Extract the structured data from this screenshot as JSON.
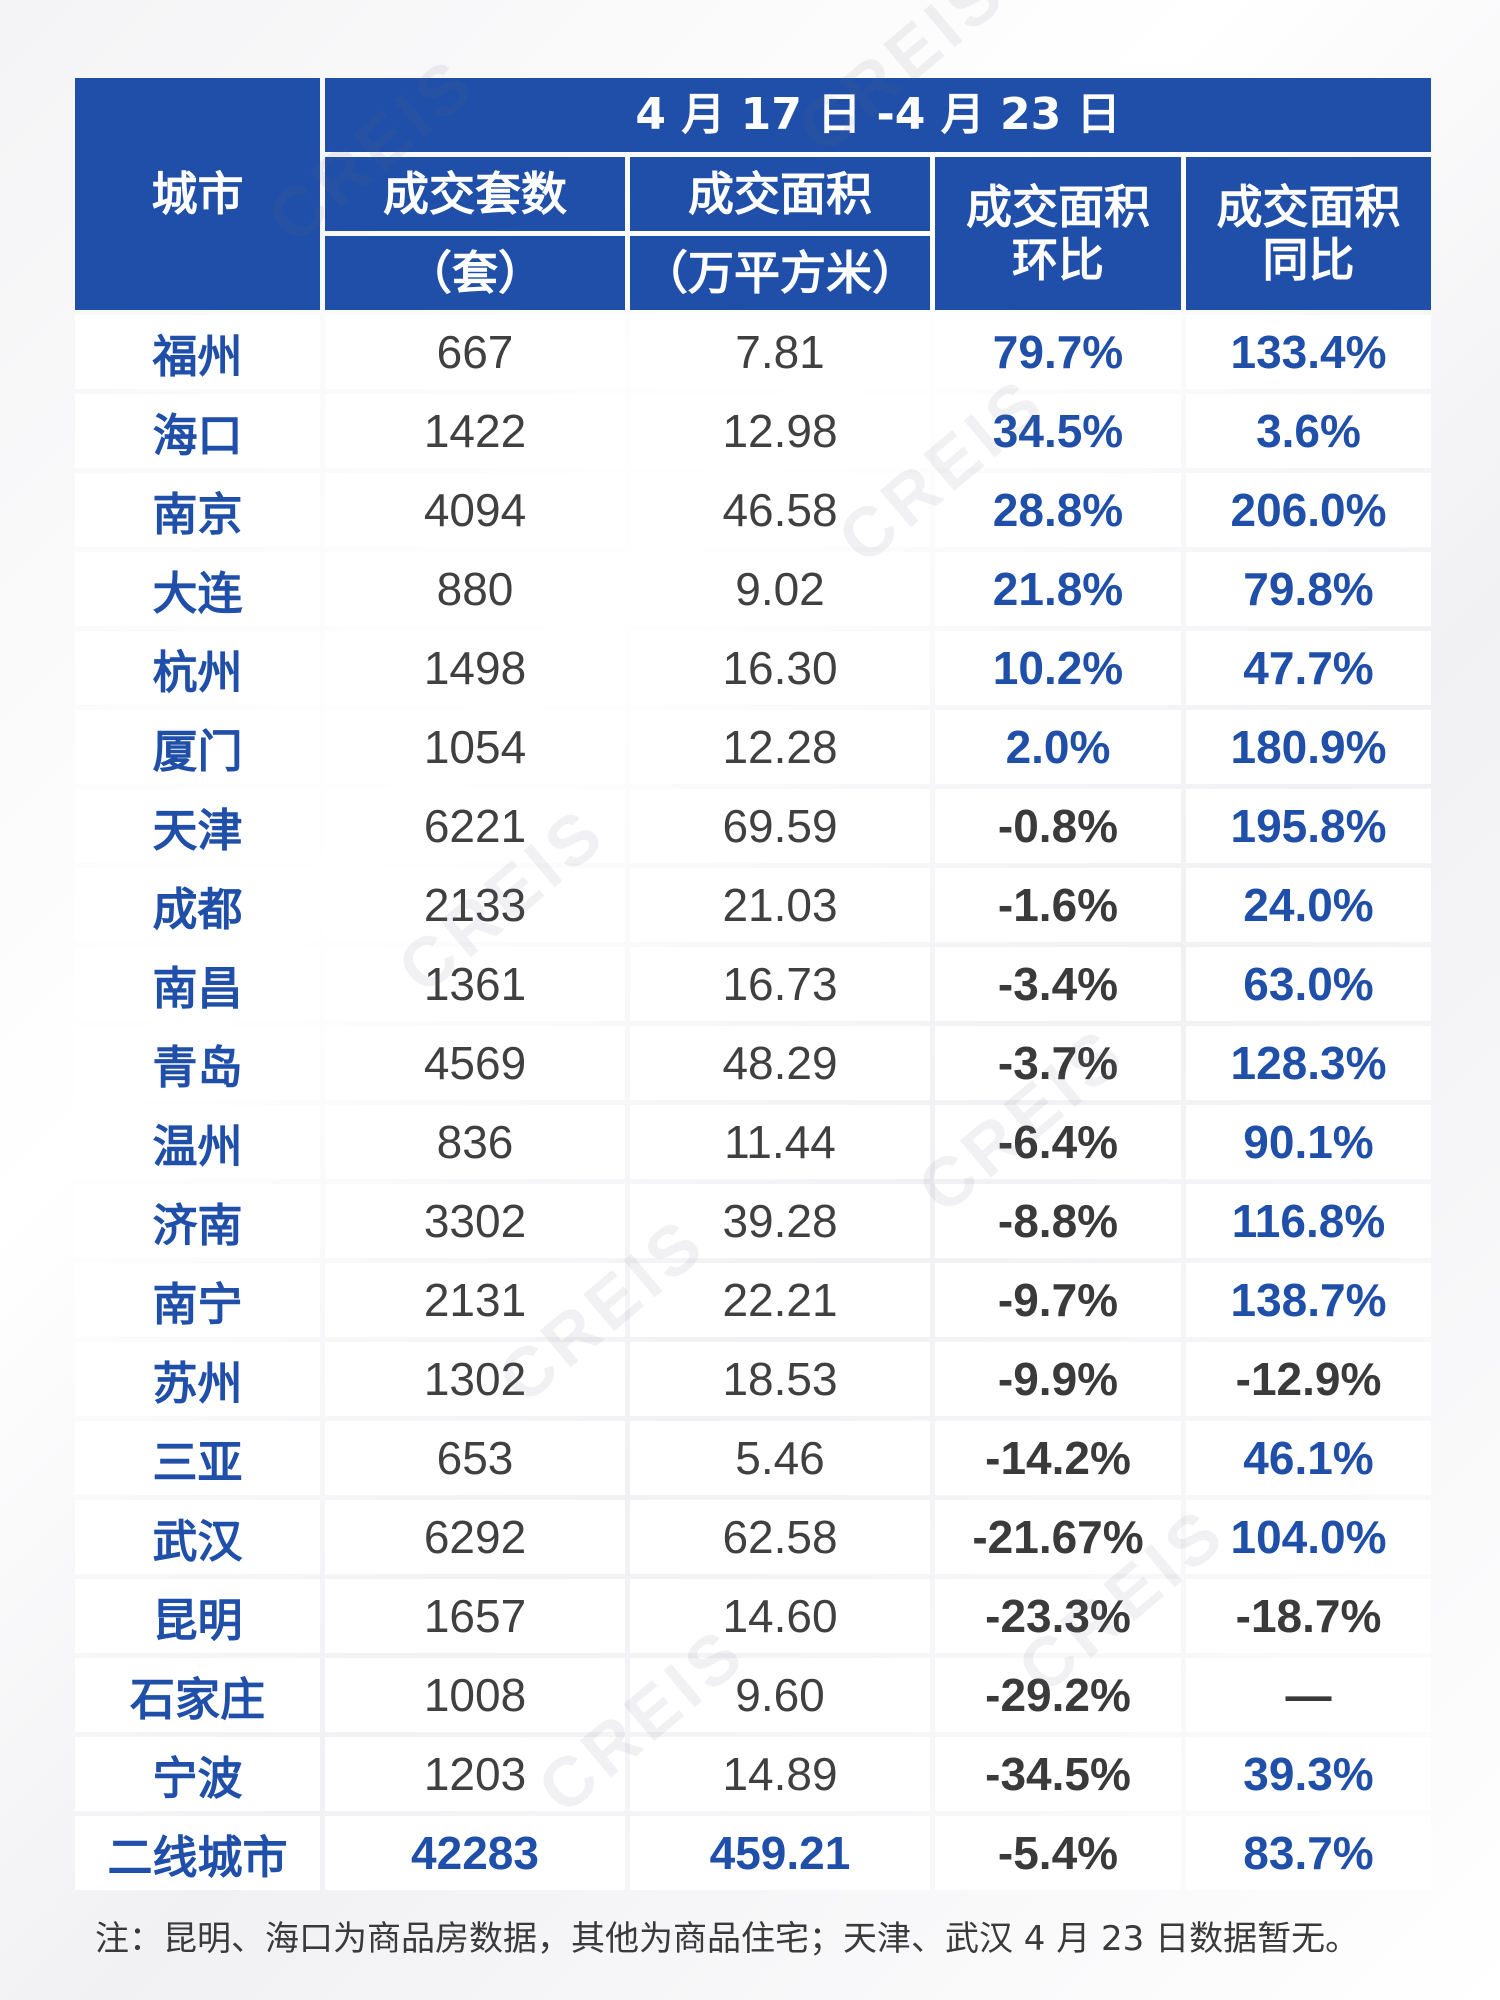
{
  "header": {
    "city": "城市",
    "date_range": "4 月 17 日 -4 月 23 日",
    "units_line1": "成交套数",
    "units_line2": "（套）",
    "area_line1": "成交面积",
    "area_line2": "（万平方米）",
    "mom_line1": "成交面积",
    "mom_line2": "环比",
    "yoy_line1": "成交面积",
    "yoy_line2": "同比"
  },
  "rows": [
    {
      "city": "福州",
      "units": "667",
      "area": "7.81",
      "mom": "79.7%",
      "yoy": "133.4%"
    },
    {
      "city": "海口",
      "units": "1422",
      "area": "12.98",
      "mom": "34.5%",
      "yoy": "3.6%"
    },
    {
      "city": "南京",
      "units": "4094",
      "area": "46.58",
      "mom": "28.8%",
      "yoy": "206.0%"
    },
    {
      "city": "大连",
      "units": "880",
      "area": "9.02",
      "mom": "21.8%",
      "yoy": "79.8%"
    },
    {
      "city": "杭州",
      "units": "1498",
      "area": "16.30",
      "mom": "10.2%",
      "yoy": "47.7%"
    },
    {
      "city": "厦门",
      "units": "1054",
      "area": "12.28",
      "mom": "2.0%",
      "yoy": "180.9%"
    },
    {
      "city": "天津",
      "units": "6221",
      "area": "69.59",
      "mom": "-0.8%",
      "yoy": "195.8%"
    },
    {
      "city": "成都",
      "units": "2133",
      "area": "21.03",
      "mom": "-1.6%",
      "yoy": "24.0%"
    },
    {
      "city": "南昌",
      "units": "1361",
      "area": "16.73",
      "mom": "-3.4%",
      "yoy": "63.0%"
    },
    {
      "city": "青岛",
      "units": "4569",
      "area": "48.29",
      "mom": "-3.7%",
      "yoy": "128.3%"
    },
    {
      "city": "温州",
      "units": "836",
      "area": "11.44",
      "mom": "-6.4%",
      "yoy": "90.1%"
    },
    {
      "city": "济南",
      "units": "3302",
      "area": "39.28",
      "mom": "-8.8%",
      "yoy": "116.8%"
    },
    {
      "city": "南宁",
      "units": "2131",
      "area": "22.21",
      "mom": "-9.7%",
      "yoy": "138.7%"
    },
    {
      "city": "苏州",
      "units": "1302",
      "area": "18.53",
      "mom": "-9.9%",
      "yoy": "-12.9%"
    },
    {
      "city": "三亚",
      "units": "653",
      "area": "5.46",
      "mom": "-14.2%",
      "yoy": "46.1%"
    },
    {
      "city": "武汉",
      "units": "6292",
      "area": "62.58",
      "mom": "-21.67%",
      "yoy": "104.0%"
    },
    {
      "city": "昆明",
      "units": "1657",
      "area": "14.60",
      "mom": "-23.3%",
      "yoy": "-18.7%"
    },
    {
      "city": "石家庄",
      "units": "1008",
      "area": "9.60",
      "mom": "-29.2%",
      "yoy": "—"
    },
    {
      "city": "宁波",
      "units": "1203",
      "area": "14.89",
      "mom": "-34.5%",
      "yoy": "39.3%"
    }
  ],
  "total": {
    "city": "二线城市",
    "units": "42283",
    "area": "459.21",
    "mom": "-5.4%",
    "yoy": "83.7%"
  },
  "note": "注：昆明、海口为商品房数据，其他为商品住宅；天津、武汉 4 月 23 日数据暂无。",
  "watermark": "CREIS",
  "colors": {
    "header_bg": "#1f4fa8",
    "positive": "#1f4fa8",
    "negative": "#3a3a3a"
  }
}
